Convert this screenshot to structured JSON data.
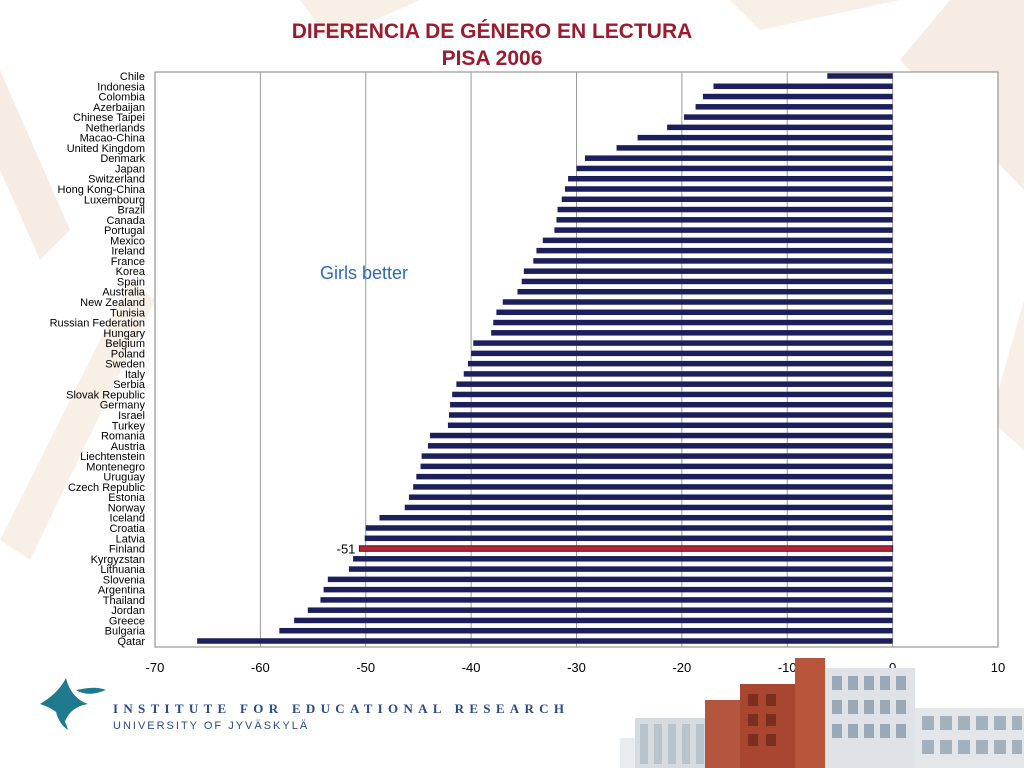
{
  "title_line1": "DIFERENCIA DE GÉNERO EN LECTURA",
  "title_line2": "PISA 2006",
  "footer": {
    "institute": "INSTITUTE FOR EDUCATIONAL RESEARCH",
    "university": "UNIVERSITY OF JYVÄSKYLÄ"
  },
  "colors": {
    "bar": "#1c1f5c",
    "highlight": "#c0202a",
    "title": "#9b1c2e",
    "annotation": "#2e6bb5"
  },
  "chart_data": {
    "type": "bar",
    "orientation": "horizontal",
    "categories": [
      "Chile",
      "Indonesia",
      "Colombia",
      "Azerbaijan",
      "Chinese Taipei",
      "Netherlands",
      "Macao-China",
      "United Kingdom",
      "Denmark",
      "Japan",
      "Switzerland",
      "Hong Kong-China",
      "Luxembourg",
      "Brazil",
      "Canada",
      "Portugal",
      "Mexico",
      "Ireland",
      "France",
      "Korea",
      "Spain",
      "Australia",
      "New Zealand",
      "Tunisia",
      "Russian Federation",
      "Hungary",
      "Belgium",
      "Poland",
      "Sweden",
      "Italy",
      "Serbia",
      "Slovak Republic",
      "Germany",
      "Israel",
      "Turkey",
      "Romania",
      "Austria",
      "Liechtenstein",
      "Montenegro",
      "Uruguay",
      "Czech Republic",
      "Estonia",
      "Norway",
      "Iceland",
      "Croatia",
      "Latvia",
      "Finland",
      "Kyrgyzstan",
      "Lithuania",
      "Slovenia",
      "Argentina",
      "Thailand",
      "Jordan",
      "Greece",
      "Bulgaria",
      "Qatar"
    ],
    "values": [
      -6.2,
      -17,
      -18,
      -18.7,
      -19.8,
      -21.4,
      -24.2,
      -26.2,
      -29.2,
      -30,
      -30.8,
      -31.1,
      -31.4,
      -31.8,
      -31.9,
      -32.1,
      -33.2,
      -33.8,
      -34.1,
      -35,
      -35.2,
      -35.6,
      -37,
      -37.6,
      -37.9,
      -38.1,
      -39.8,
      -40,
      -40.3,
      -40.7,
      -41.4,
      -41.8,
      -42,
      -42.1,
      -42.2,
      -43.9,
      -44.1,
      -44.7,
      -44.8,
      -45.2,
      -45.5,
      -45.9,
      -46.3,
      -48.7,
      -50,
      -50.1,
      -50.6,
      -51.2,
      -51.6,
      -53.6,
      -54,
      -54.3,
      -55.5,
      -56.8,
      -58.2,
      -66
    ]
  },
  "axis": {
    "xlim": [
      -70,
      10
    ],
    "ticks": [
      "-70",
      "-60",
      "-50",
      "-40",
      "-30",
      "-20",
      "-10",
      "0",
      "10"
    ],
    "grid": true
  },
  "annotation": "Girls better",
  "highlight": {
    "category": "Finland",
    "label": "-51"
  }
}
